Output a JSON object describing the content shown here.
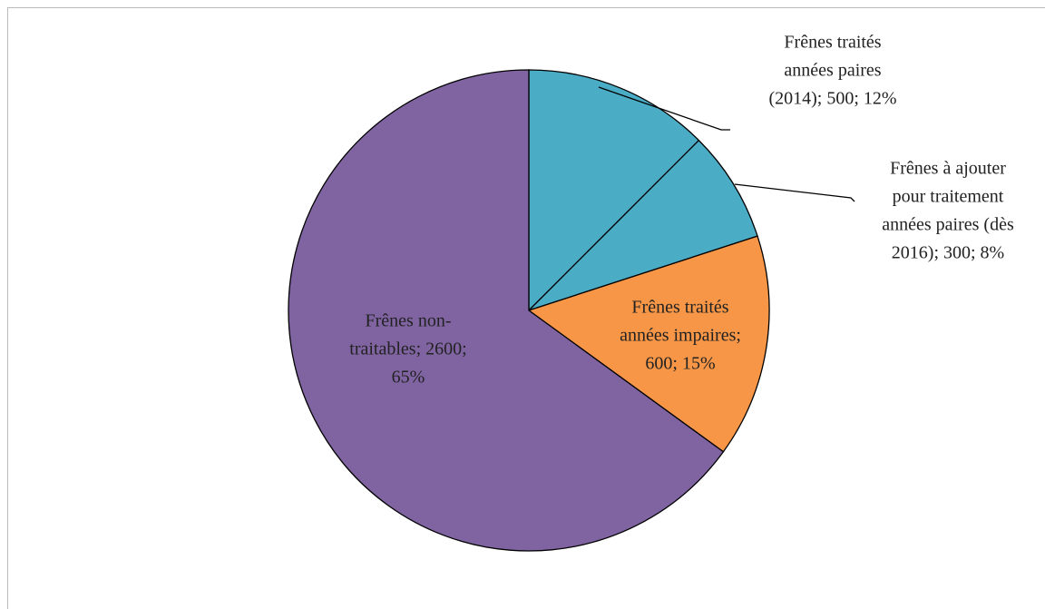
{
  "chart_data": {
    "type": "pie",
    "categories": [
      "Frênes traités années paires (2014)",
      "Frênes à ajouter pour traitement années paires (dès 2016)",
      "Frênes traités années impaires",
      "Frênes non-traitables"
    ],
    "values": [
      500,
      300,
      600,
      2600
    ],
    "percentages": [
      12,
      8,
      15,
      65
    ],
    "colors": [
      "#4bacc6",
      "#4bacc6",
      "#f79646",
      "#8064a2"
    ],
    "value_labels": [
      [
        "Frênes traités",
        "années paires",
        "(2014); 500; 12%"
      ],
      [
        "Frênes à ajouter",
        "pour traitement",
        "années paires (dès",
        "2016); 300; 8%"
      ],
      [
        "Frênes traités",
        "années impaires;",
        "600; 15%"
      ],
      [
        "Frênes non-",
        "traitables; 2600;",
        "65%"
      ]
    ]
  }
}
